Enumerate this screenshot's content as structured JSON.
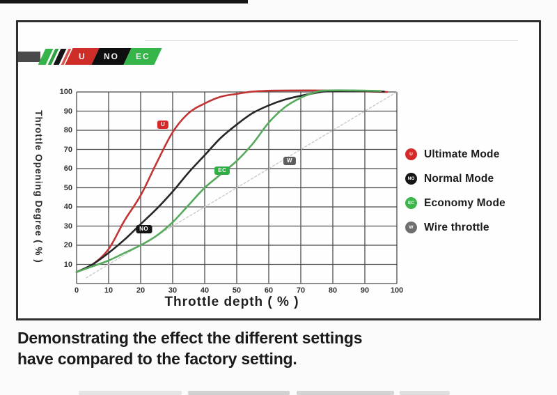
{
  "figure": {
    "caption": "Demonstrating the effect the different settings\nhave compared to the factory setting."
  },
  "logo": {
    "segments": [
      {
        "label": "U",
        "color": "#cf2e28"
      },
      {
        "label": "NO",
        "color": "#0f0f0f"
      },
      {
        "label": "EC",
        "color": "#35b44a"
      }
    ]
  },
  "legend": {
    "items": [
      {
        "label": "Ultimate Mode",
        "letter": "U",
        "color": "#d42a2a"
      },
      {
        "label": "Normal Mode",
        "letter": "NO",
        "color": "#161616"
      },
      {
        "label": "Economy Mode",
        "letter": "EC",
        "color": "#3cb54a"
      },
      {
        "label": "Wire throttle",
        "letter": "W",
        "color": "#6e6e6e"
      }
    ]
  },
  "chart_data": {
    "type": "line",
    "title": "",
    "xlabel": "Throttle depth ( % )",
    "ylabel": "Throttle Opening Degree ( % )",
    "xlim": [
      0,
      100
    ],
    "ylim": [
      0,
      100
    ],
    "x_ticks": [
      0,
      10,
      20,
      30,
      40,
      50,
      60,
      70,
      80,
      90,
      100
    ],
    "y_ticks": [
      10,
      20,
      30,
      40,
      50,
      60,
      70,
      80,
      90,
      100
    ],
    "grid": true,
    "grid_color": "#4c4c4c",
    "legend_position": "right",
    "series": [
      {
        "name": "Ultimate Mode",
        "color": "#c23434",
        "style": "solid",
        "points": [
          [
            0,
            6
          ],
          [
            5,
            10
          ],
          [
            10,
            18
          ],
          [
            15,
            33
          ],
          [
            20,
            46
          ],
          [
            25,
            63
          ],
          [
            30,
            79
          ],
          [
            35,
            89
          ],
          [
            40,
            94
          ],
          [
            45,
            97.5
          ],
          [
            50,
            99
          ],
          [
            55,
            100.2
          ],
          [
            62,
            100.7
          ],
          [
            72,
            100.8
          ],
          [
            82,
            100.7
          ],
          [
            92,
            100.2
          ],
          [
            97,
            100
          ]
        ]
      },
      {
        "name": "Normal Mode",
        "color": "#262626",
        "style": "solid",
        "points": [
          [
            0,
            6
          ],
          [
            5,
            10
          ],
          [
            10,
            16
          ],
          [
            15,
            23
          ],
          [
            20,
            31
          ],
          [
            25,
            39
          ],
          [
            30,
            48
          ],
          [
            35,
            58
          ],
          [
            40,
            67
          ],
          [
            45,
            76
          ],
          [
            50,
            83
          ],
          [
            55,
            89
          ],
          [
            60,
            93
          ],
          [
            65,
            96
          ],
          [
            70,
            98
          ],
          [
            75,
            99.6
          ],
          [
            78,
            100.3
          ],
          [
            86,
            100.5
          ],
          [
            96,
            100.2
          ]
        ]
      },
      {
        "name": "Economy Mode",
        "color": "#57a95e",
        "style": "solid",
        "points": [
          [
            0,
            6
          ],
          [
            5,
            9
          ],
          [
            10,
            12
          ],
          [
            15,
            16
          ],
          [
            20,
            20
          ],
          [
            25,
            25
          ],
          [
            30,
            32
          ],
          [
            35,
            41
          ],
          [
            40,
            50
          ],
          [
            45,
            57
          ],
          [
            50,
            64
          ],
          [
            55,
            73
          ],
          [
            60,
            84
          ],
          [
            65,
            92
          ],
          [
            70,
            97
          ],
          [
            74,
            99.5
          ],
          [
            77,
            100.7
          ],
          [
            86,
            100.8
          ],
          [
            95,
            100.5
          ]
        ]
      },
      {
        "name": "Wire throttle",
        "color": "#c9c9c9",
        "style": "dotted",
        "points": [
          [
            3,
            3
          ],
          [
            100,
            100
          ]
        ]
      }
    ],
    "annotations": [
      {
        "text": "U",
        "x": 27,
        "y": 83,
        "color": "#d42a2a"
      },
      {
        "text": "NO",
        "x": 21,
        "y": 28.5,
        "color": "#141414"
      },
      {
        "text": "EC",
        "x": 45.5,
        "y": 59,
        "color": "#2fae44"
      },
      {
        "text": "W",
        "x": 66.5,
        "y": 64,
        "color": "#5d5d5d"
      }
    ]
  }
}
